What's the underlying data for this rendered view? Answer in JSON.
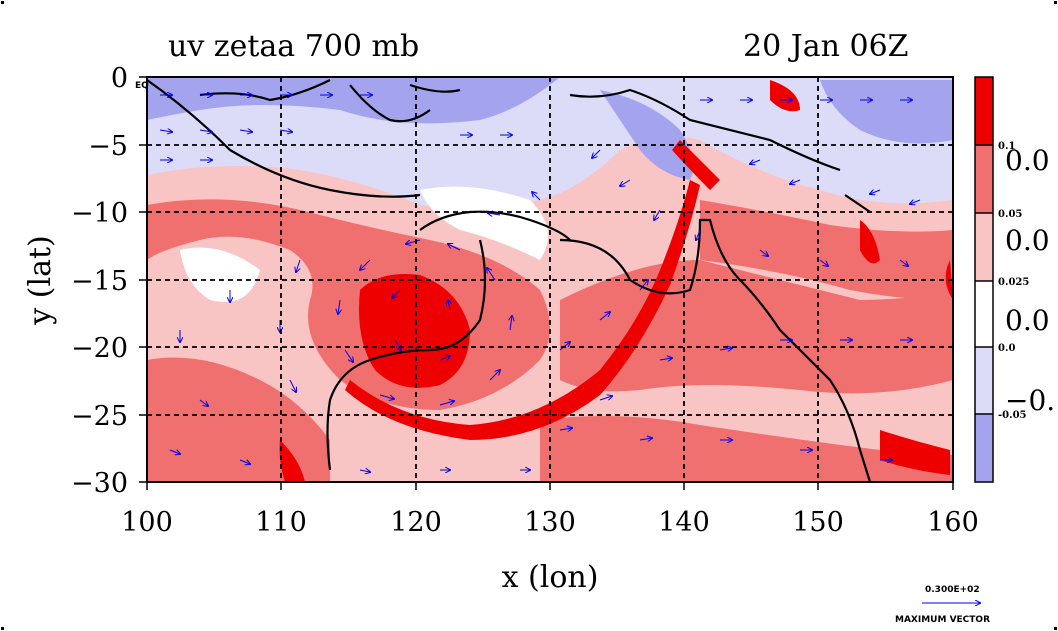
{
  "title_left": "uv zetaa 700 mb",
  "title_right": "20 Jan 06Z",
  "map_corner_label": "EQ",
  "x_axis": {
    "label": "x (lon)",
    "range": [
      100,
      160
    ],
    "ticks": [
      "100",
      "110",
      "120",
      "130",
      "140",
      "150",
      "160"
    ]
  },
  "y_axis": {
    "label": "y (lat)",
    "range": [
      -30,
      0
    ],
    "ticks": [
      "0",
      "−5",
      "−10",
      "−15",
      "−20",
      "−25",
      "−30"
    ]
  },
  "colorbar": {
    "colors": [
      "#ee0000",
      "#f07070",
      "#f8c4c4",
      "#ffffff",
      "#dcdcf8",
      "#a4a4ee"
    ],
    "small_labels": [
      "0.1",
      "0.05",
      "0.025",
      "0.0",
      "-0.05"
    ],
    "big_labels": [
      "0.0",
      "0.0",
      "0.0",
      "−0."
    ]
  },
  "vector_key": {
    "value": "0.300E+02",
    "label": "MAXIMUM VECTOR",
    "color": "#0000ee"
  },
  "colors": {
    "strong_positive": "#ee0000",
    "positive": "#f07070",
    "weak_positive": "#f8c4c4",
    "neutral": "#ffffff",
    "weak_negative": "#dcdcf8",
    "negative": "#a4a4ee",
    "wind_vectors": "#0000ee",
    "contour": "#dd0000",
    "coastline": "#000000"
  }
}
